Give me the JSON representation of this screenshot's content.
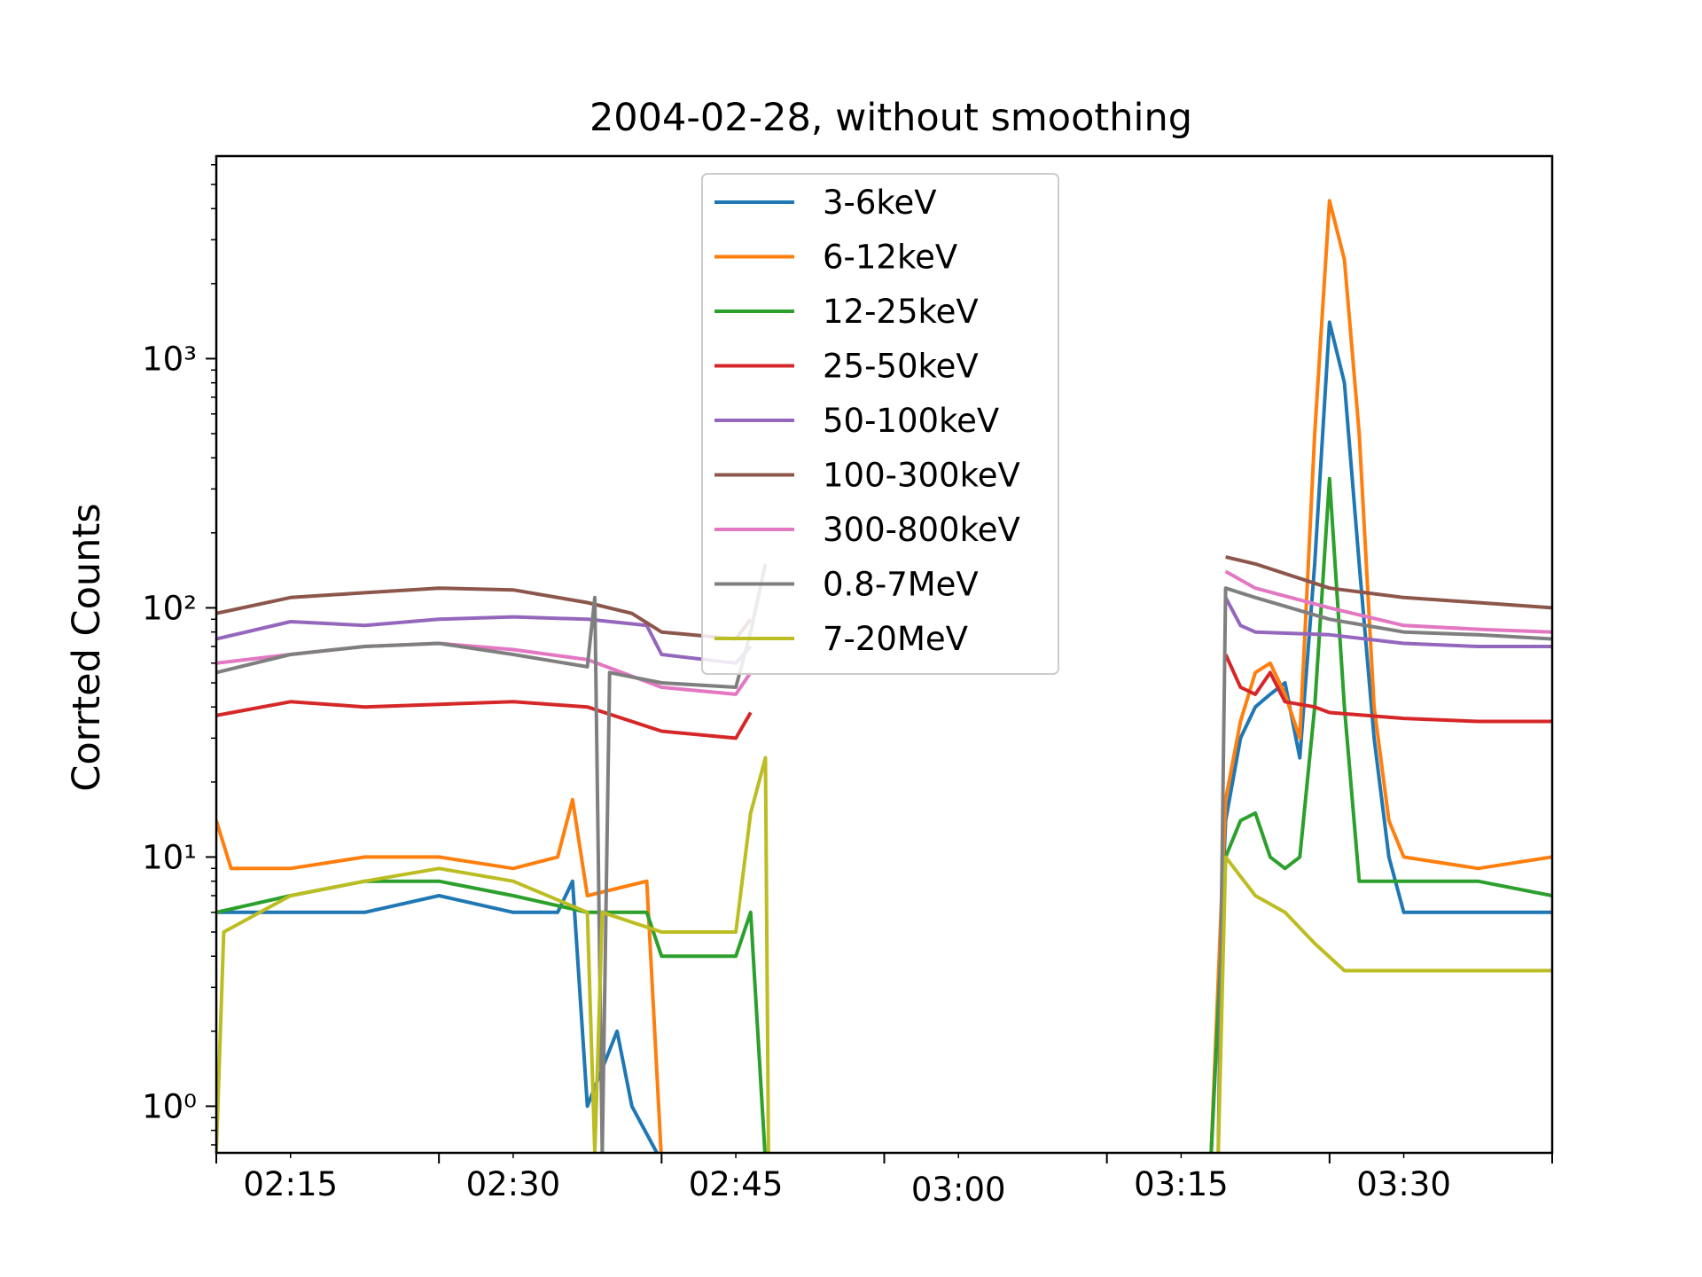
{
  "chart_data": {
    "type": "line",
    "title": "2004-02-28, without smoothing",
    "xlabel": "",
    "ylabel": "Corrted Counts",
    "yscale": "log",
    "ylim": [
      0.65,
      6500
    ],
    "xlim": [
      "02:10",
      "03:40"
    ],
    "x_ticks": [
      "02:15",
      "02:30",
      "02:45",
      "03:00",
      "03:15",
      "03:30"
    ],
    "y_ticks": [
      {
        "value": 1,
        "label": "10⁰"
      },
      {
        "value": 10,
        "label": "10¹"
      },
      {
        "value": 100,
        "label": "10²"
      },
      {
        "value": 1000,
        "label": "10³"
      }
    ],
    "legend_position": "upper center",
    "grid": false,
    "series": [
      {
        "name": "3-6keV",
        "color": "#1f77b4",
        "points": [
          [
            "02:10",
            6
          ],
          [
            "02:15",
            6
          ],
          [
            "02:20",
            6
          ],
          [
            "02:25",
            7
          ],
          [
            "02:30",
            6
          ],
          [
            "02:33",
            6
          ],
          [
            "02:34",
            8
          ],
          [
            "02:35",
            1
          ],
          [
            "02:37",
            2
          ],
          [
            "02:38",
            1
          ],
          [
            "02:40",
            0.6
          ],
          [
            "02:47",
            0.6
          ],
          [
            "03:17",
            0.6
          ],
          [
            "03:18",
            14
          ],
          [
            "03:19",
            30
          ],
          [
            "03:20",
            40
          ],
          [
            "03:21",
            45
          ],
          [
            "03:22",
            50
          ],
          [
            "03:23",
            25
          ],
          [
            "03:24",
            150
          ],
          [
            "03:25",
            1400
          ],
          [
            "03:26",
            800
          ],
          [
            "03:27",
            150
          ],
          [
            "03:28",
            30
          ],
          [
            "03:29",
            10
          ],
          [
            "03:30",
            6
          ],
          [
            "03:35",
            6
          ],
          [
            "03:40",
            6
          ]
        ]
      },
      {
        "name": "6-12keV",
        "color": "#ff7f0e",
        "points": [
          [
            "02:10",
            14
          ],
          [
            "02:11",
            9
          ],
          [
            "02:15",
            9
          ],
          [
            "02:20",
            10
          ],
          [
            "02:25",
            10
          ],
          [
            "02:30",
            9
          ],
          [
            "02:33",
            10
          ],
          [
            "02:34",
            17
          ],
          [
            "02:35",
            7
          ],
          [
            "02:39",
            8
          ],
          [
            "02:40",
            0.6
          ],
          [
            "02:47",
            0.6
          ],
          [
            "03:17",
            0.6
          ],
          [
            "03:18",
            17
          ],
          [
            "03:19",
            35
          ],
          [
            "03:20",
            55
          ],
          [
            "03:21",
            60
          ],
          [
            "03:22",
            45
          ],
          [
            "03:23",
            30
          ],
          [
            "03:24",
            500
          ],
          [
            "03:25",
            4300
          ],
          [
            "03:26",
            2500
          ],
          [
            "03:27",
            500
          ],
          [
            "03:28",
            40
          ],
          [
            "03:29",
            14
          ],
          [
            "03:30",
            10
          ],
          [
            "03:35",
            9
          ],
          [
            "03:40",
            10
          ]
        ]
      },
      {
        "name": "12-25keV",
        "color": "#2ca02c",
        "points": [
          [
            "02:10",
            6
          ],
          [
            "02:15",
            7
          ],
          [
            "02:20",
            8
          ],
          [
            "02:25",
            8
          ],
          [
            "02:30",
            7
          ],
          [
            "02:35",
            6
          ],
          [
            "02:39",
            6
          ],
          [
            "02:40",
            4
          ],
          [
            "02:45",
            4
          ],
          [
            "02:46",
            6
          ],
          [
            "02:47",
            0.6
          ],
          [
            "03:17",
            0.6
          ],
          [
            "03:18",
            10
          ],
          [
            "03:19",
            14
          ],
          [
            "03:20",
            15
          ],
          [
            "03:21",
            10
          ],
          [
            "03:22",
            9
          ],
          [
            "03:23",
            10
          ],
          [
            "03:24",
            40
          ],
          [
            "03:25",
            330
          ],
          [
            "03:26",
            40
          ],
          [
            "03:27",
            8
          ],
          [
            "03:30",
            8
          ],
          [
            "03:35",
            8
          ],
          [
            "03:40",
            7
          ]
        ]
      },
      {
        "name": "25-50keV",
        "color": "#d62728",
        "points": [
          [
            "02:10",
            37
          ],
          [
            "02:15",
            42
          ],
          [
            "02:20",
            40
          ],
          [
            "02:25",
            41
          ],
          [
            "02:30",
            42
          ],
          [
            "02:35",
            40
          ],
          [
            "02:40",
            32
          ],
          [
            "02:45",
            30
          ],
          [
            "02:46",
            38
          ],
          [
            "02:47",
            null
          ],
          [
            "03:17",
            null
          ],
          [
            "03:18",
            65
          ],
          [
            "03:19",
            48
          ],
          [
            "03:20",
            45
          ],
          [
            "03:21",
            55
          ],
          [
            "03:22",
            42
          ],
          [
            "03:24",
            40
          ],
          [
            "03:25",
            38
          ],
          [
            "03:30",
            36
          ],
          [
            "03:35",
            35
          ],
          [
            "03:40",
            35
          ]
        ]
      },
      {
        "name": "50-100keV",
        "color": "#9467bd",
        "points": [
          [
            "02:10",
            75
          ],
          [
            "02:15",
            88
          ],
          [
            "02:20",
            85
          ],
          [
            "02:25",
            90
          ],
          [
            "02:30",
            92
          ],
          [
            "02:35",
            90
          ],
          [
            "02:39",
            85
          ],
          [
            "02:40",
            65
          ],
          [
            "02:45",
            60
          ],
          [
            "02:46",
            70
          ],
          [
            "02:47",
            null
          ],
          [
            "03:17",
            null
          ],
          [
            "03:18",
            110
          ],
          [
            "03:19",
            85
          ],
          [
            "03:20",
            80
          ],
          [
            "03:25",
            78
          ],
          [
            "03:30",
            72
          ],
          [
            "03:35",
            70
          ],
          [
            "03:40",
            70
          ]
        ]
      },
      {
        "name": "100-300keV",
        "color": "#8c564b",
        "points": [
          [
            "02:10",
            95
          ],
          [
            "02:15",
            110
          ],
          [
            "02:20",
            115
          ],
          [
            "02:25",
            120
          ],
          [
            "02:30",
            118
          ],
          [
            "02:35",
            105
          ],
          [
            "02:38",
            95
          ],
          [
            "02:40",
            80
          ],
          [
            "02:45",
            75
          ],
          [
            "02:46",
            90
          ],
          [
            "02:47",
            null
          ],
          [
            "03:17",
            null
          ],
          [
            "03:18",
            160
          ],
          [
            "03:20",
            150
          ],
          [
            "03:25",
            120
          ],
          [
            "03:30",
            110
          ],
          [
            "03:35",
            105
          ],
          [
            "03:40",
            100
          ]
        ]
      },
      {
        "name": "300-800keV",
        "color": "#e377c2",
        "points": [
          [
            "02:10",
            60
          ],
          [
            "02:15",
            65
          ],
          [
            "02:20",
            70
          ],
          [
            "02:25",
            72
          ],
          [
            "02:30",
            68
          ],
          [
            "02:35",
            62
          ],
          [
            "02:40",
            48
          ],
          [
            "02:45",
            45
          ],
          [
            "02:46",
            55
          ],
          [
            "02:47",
            null
          ],
          [
            "03:17",
            null
          ],
          [
            "03:18",
            140
          ],
          [
            "03:20",
            120
          ],
          [
            "03:25",
            100
          ],
          [
            "03:30",
            85
          ],
          [
            "03:35",
            82
          ],
          [
            "03:40",
            80
          ]
        ]
      },
      {
        "name": "0.8-7MeV",
        "color": "#7f7f7f",
        "points": [
          [
            "02:10",
            55
          ],
          [
            "02:15",
            65
          ],
          [
            "02:20",
            70
          ],
          [
            "02:25",
            72
          ],
          [
            "02:30",
            65
          ],
          [
            "02:35",
            58
          ],
          [
            "02:35.5",
            110
          ],
          [
            "02:36",
            0.65
          ],
          [
            "02:36.5",
            55
          ],
          [
            "02:40",
            50
          ],
          [
            "02:45",
            48
          ],
          [
            "02:46",
            80
          ],
          [
            "02:47",
            150
          ],
          [
            "02:47.2",
            null
          ],
          [
            "03:17",
            null
          ],
          [
            "03:17.5",
            0.65
          ],
          [
            "03:18",
            120
          ],
          [
            "03:20",
            110
          ],
          [
            "03:25",
            90
          ],
          [
            "03:30",
            80
          ],
          [
            "03:35",
            78
          ],
          [
            "03:40",
            75
          ]
        ]
      },
      {
        "name": "7-20MeV",
        "color": "#bcbd22",
        "points": [
          [
            "02:10",
            0.65
          ],
          [
            "02:10.5",
            5
          ],
          [
            "02:15",
            7
          ],
          [
            "02:20",
            8
          ],
          [
            "02:25",
            9
          ],
          [
            "02:30",
            8
          ],
          [
            "02:35",
            6
          ],
          [
            "02:35.5",
            0.65
          ],
          [
            "02:36",
            6
          ],
          [
            "02:40",
            5
          ],
          [
            "02:45",
            5
          ],
          [
            "02:46",
            15
          ],
          [
            "02:47",
            25
          ],
          [
            "02:47.2",
            0.65
          ],
          [
            "03:17",
            null
          ],
          [
            "03:17.5",
            0.65
          ],
          [
            "03:18",
            10
          ],
          [
            "03:20",
            7
          ],
          [
            "03:22",
            6
          ],
          [
            "03:24",
            4.5
          ],
          [
            "03:26",
            3.5
          ],
          [
            "03:30",
            3.5
          ],
          [
            "03:35",
            3.5
          ],
          [
            "03:40",
            3.5
          ]
        ]
      }
    ]
  }
}
